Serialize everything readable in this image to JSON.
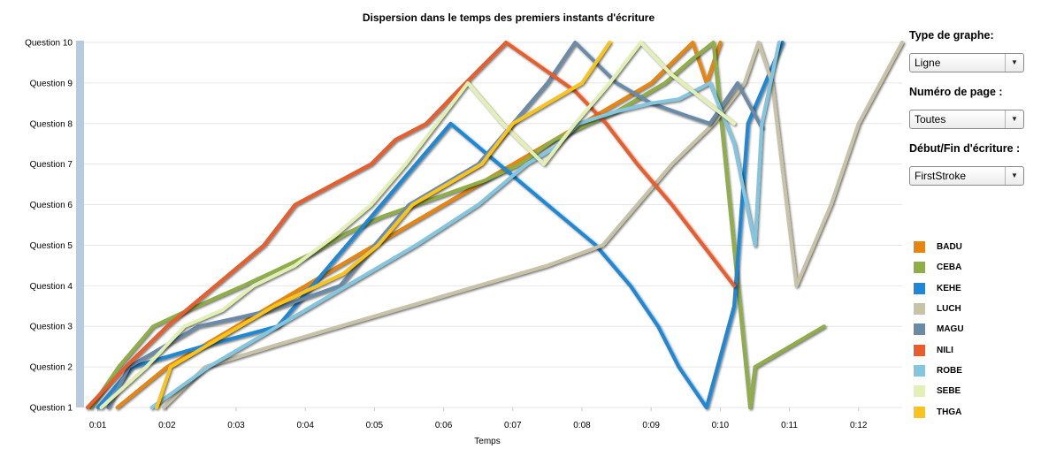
{
  "chart_data": {
    "type": "line",
    "title": "Dispersion dans le temps des premiers instants d'écriture",
    "xlabel": "Temps",
    "ylabel": "",
    "x_ticks": [
      {
        "value": 1,
        "label": "0:01"
      },
      {
        "value": 2,
        "label": "0:02"
      },
      {
        "value": 3,
        "label": "0:03"
      },
      {
        "value": 4,
        "label": "0:04"
      },
      {
        "value": 5,
        "label": "0:05"
      },
      {
        "value": 6,
        "label": "0:06"
      },
      {
        "value": 7,
        "label": "0:07"
      },
      {
        "value": 8,
        "label": "0:08"
      },
      {
        "value": 9,
        "label": "0:09"
      },
      {
        "value": 10,
        "label": "0:10"
      },
      {
        "value": 11,
        "label": "0:11"
      },
      {
        "value": 12,
        "label": "0:12"
      }
    ],
    "y_ticks": [
      {
        "value": 1,
        "label": "Question 1"
      },
      {
        "value": 2,
        "label": "Question 2"
      },
      {
        "value": 3,
        "label": "Question 3"
      },
      {
        "value": 4,
        "label": "Question 4"
      },
      {
        "value": 5,
        "label": "Question 5"
      },
      {
        "value": 6,
        "label": "Question 6"
      },
      {
        "value": 7,
        "label": "Question 7"
      },
      {
        "value": 8,
        "label": "Question 8"
      },
      {
        "value": 9,
        "label": "Question 9"
      },
      {
        "value": 10,
        "label": "Question 10"
      }
    ],
    "xlim": [
      0.8,
      12.63
    ],
    "ylim": [
      1,
      10
    ],
    "grid": "horizontal",
    "legend": "right",
    "series": [
      {
        "name": "BADU",
        "color": "#E8850C",
        "points": [
          [
            1.28,
            1
          ],
          [
            2.0,
            2
          ],
          [
            3.0,
            3
          ],
          [
            4.0,
            4
          ],
          [
            5.0,
            5
          ],
          [
            6.0,
            6
          ],
          [
            7.0,
            7
          ],
          [
            8.0,
            8
          ],
          [
            9.0,
            9
          ],
          [
            9.6,
            10
          ],
          [
            9.8,
            9
          ],
          [
            10.0,
            10
          ]
        ]
      },
      {
        "name": "CEBA",
        "color": "#8FAE45",
        "points": [
          [
            0.9,
            1
          ],
          [
            1.3,
            2
          ],
          [
            1.8,
            3
          ],
          [
            2.3,
            3.4
          ],
          [
            2.7,
            3.7
          ],
          [
            3.1,
            4
          ],
          [
            3.6,
            4.4
          ],
          [
            4.1,
            4.8
          ],
          [
            4.6,
            5.3
          ],
          [
            5.1,
            5.7
          ],
          [
            5.6,
            6
          ],
          [
            6.1,
            6.3
          ],
          [
            6.6,
            6.6
          ],
          [
            7.1,
            7
          ],
          [
            7.6,
            7.6
          ],
          [
            8.1,
            8
          ],
          [
            8.5,
            8.3
          ],
          [
            9.2,
            9
          ],
          [
            9.6,
            9.6
          ],
          [
            9.9,
            10
          ],
          [
            10.43,
            1
          ],
          [
            10.5,
            2
          ],
          [
            11.5,
            3
          ]
        ]
      },
      {
        "name": "KEHE",
        "color": "#1E88D6",
        "points": [
          [
            1.0,
            1
          ],
          [
            1.5,
            2
          ],
          [
            2.5,
            2.5
          ],
          [
            3.6,
            3
          ],
          [
            4.1,
            4
          ],
          [
            4.6,
            5
          ],
          [
            5.1,
            6
          ],
          [
            5.6,
            7
          ],
          [
            6.1,
            8
          ],
          [
            6.8,
            7
          ],
          [
            7.5,
            6
          ],
          [
            8.2,
            5
          ],
          [
            8.7,
            4
          ],
          [
            9.1,
            3
          ],
          [
            9.4,
            2
          ],
          [
            9.8,
            1
          ],
          [
            10.2,
            3.5
          ],
          [
            10.4,
            8
          ],
          [
            10.9,
            10
          ]
        ]
      },
      {
        "name": "LUCH",
        "color": "#C8C3A6",
        "points": [
          [
            1.95,
            1
          ],
          [
            2.55,
            2
          ],
          [
            3.5,
            2.5
          ],
          [
            4.5,
            3
          ],
          [
            5.5,
            3.5
          ],
          [
            6.5,
            4
          ],
          [
            7.5,
            4.5
          ],
          [
            8.3,
            5
          ],
          [
            8.8,
            6
          ],
          [
            9.3,
            7
          ],
          [
            9.9,
            8
          ],
          [
            10.35,
            9
          ],
          [
            10.55,
            10
          ],
          [
            10.75,
            9
          ],
          [
            11.1,
            4
          ],
          [
            11.6,
            6
          ],
          [
            12.0,
            8
          ],
          [
            12.63,
            10
          ]
        ]
      },
      {
        "name": "MAGU",
        "color": "#6A8BA8",
        "points": [
          [
            1.15,
            1
          ],
          [
            1.45,
            2
          ],
          [
            1.95,
            2.5
          ],
          [
            2.45,
            3
          ],
          [
            3.0,
            3.2
          ],
          [
            3.5,
            3.4
          ],
          [
            4.0,
            3.7
          ],
          [
            4.5,
            4
          ],
          [
            5.0,
            5
          ],
          [
            5.5,
            6
          ],
          [
            6.0,
            6.5
          ],
          [
            6.5,
            7
          ],
          [
            7.0,
            8
          ],
          [
            7.5,
            9
          ],
          [
            7.9,
            10
          ],
          [
            8.5,
            9
          ],
          [
            9.0,
            8.5
          ],
          [
            9.5,
            8.2
          ],
          [
            9.85,
            8
          ],
          [
            10.25,
            9
          ],
          [
            10.6,
            7.9
          ]
        ]
      },
      {
        "name": "NILI",
        "color": "#EA5C2A",
        "points": [
          [
            0.85,
            1
          ],
          [
            1.4,
            2
          ],
          [
            2.0,
            3
          ],
          [
            2.7,
            4
          ],
          [
            3.4,
            5
          ],
          [
            3.85,
            6
          ],
          [
            4.4,
            6.5
          ],
          [
            4.95,
            7
          ],
          [
            5.3,
            7.6
          ],
          [
            5.75,
            8
          ],
          [
            6.2,
            8.8
          ],
          [
            6.9,
            10
          ],
          [
            7.4,
            9.4
          ],
          [
            7.9,
            8.8
          ],
          [
            8.35,
            8
          ],
          [
            8.8,
            7
          ],
          [
            9.3,
            6
          ],
          [
            9.75,
            5
          ],
          [
            10.2,
            4
          ]
        ]
      },
      {
        "name": "ROBE",
        "color": "#83C6DF",
        "points": [
          [
            1.78,
            1
          ],
          [
            2.6,
            2
          ],
          [
            3.6,
            3
          ],
          [
            4.6,
            4
          ],
          [
            5.6,
            5
          ],
          [
            6.5,
            6
          ],
          [
            7.2,
            7
          ],
          [
            7.6,
            7.4
          ],
          [
            7.95,
            8
          ],
          [
            8.5,
            8.3
          ],
          [
            9.0,
            8.5
          ],
          [
            9.4,
            8.6
          ],
          [
            9.85,
            9
          ],
          [
            10.2,
            7.5
          ],
          [
            10.5,
            5
          ],
          [
            10.6,
            8
          ],
          [
            10.85,
            10
          ]
        ]
      },
      {
        "name": "SEBE",
        "color": "#E3F0B4",
        "points": [
          [
            1.05,
            1
          ],
          [
            1.7,
            2
          ],
          [
            2.25,
            3
          ],
          [
            2.8,
            3.4
          ],
          [
            3.25,
            4
          ],
          [
            3.85,
            4.5
          ],
          [
            4.4,
            5.2
          ],
          [
            4.95,
            6
          ],
          [
            5.45,
            7
          ],
          [
            5.9,
            8
          ],
          [
            6.35,
            9
          ],
          [
            6.85,
            8
          ],
          [
            7.45,
            7
          ],
          [
            7.9,
            8
          ],
          [
            8.4,
            9
          ],
          [
            8.85,
            10
          ],
          [
            9.3,
            9.2
          ],
          [
            9.75,
            8.6
          ],
          [
            10.2,
            8
          ]
        ]
      },
      {
        "name": "THGA",
        "color": "#FBC41C",
        "points": [
          [
            1.85,
            1
          ],
          [
            2.05,
            2
          ],
          [
            2.55,
            2.5
          ],
          [
            3.05,
            3
          ],
          [
            3.55,
            3.5
          ],
          [
            4.05,
            3.9
          ],
          [
            4.55,
            4.3
          ],
          [
            5.05,
            5
          ],
          [
            5.55,
            6
          ],
          [
            6.05,
            6.5
          ],
          [
            6.55,
            7
          ],
          [
            7.0,
            8
          ],
          [
            7.5,
            8.5
          ],
          [
            8.0,
            9
          ],
          [
            8.4,
            10
          ]
        ]
      }
    ]
  },
  "controls": {
    "graph_type_label": "Type de graphe:",
    "graph_type_value": "Ligne",
    "page_number_label": "Numéro de page :",
    "page_number_value": "Toutes",
    "writing_label": "Début/Fin d'écriture :",
    "writing_value": "FirstStroke"
  }
}
